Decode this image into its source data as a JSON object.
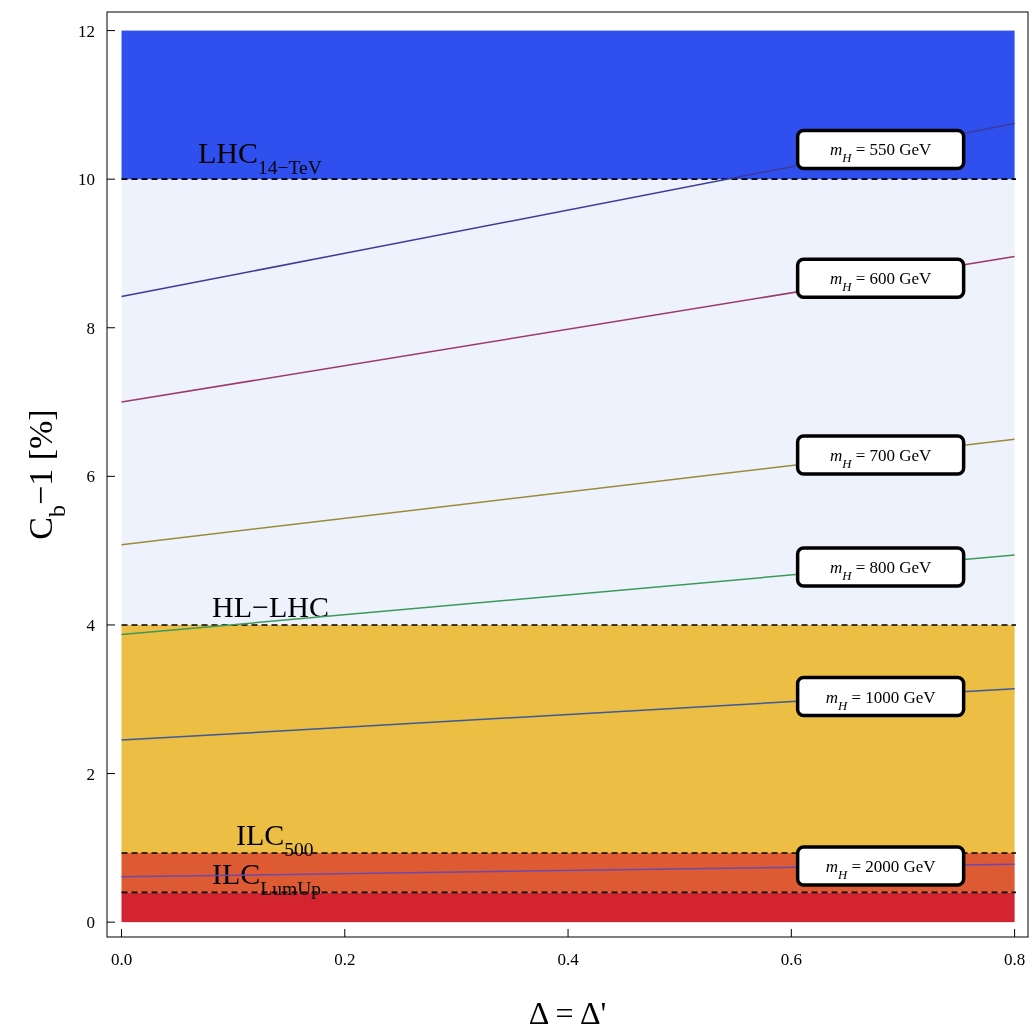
{
  "chart_data": {
    "type": "line",
    "xlabel": "Δ = Δ'",
    "ylabel": "C$_{b}$−1 [%]",
    "xlim": [
      -0.013,
      0.812
    ],
    "ylim": [
      -0.2,
      12.25
    ],
    "xticks": [
      {
        "value": 0,
        "label": "0.0"
      },
      {
        "value": 0.2,
        "label": "0.2"
      },
      {
        "value": 0.4,
        "label": "0.4"
      },
      {
        "value": 0.6,
        "label": "0.6"
      },
      {
        "value": 0.8,
        "label": "0.8"
      }
    ],
    "yticks": [
      0,
      2,
      4,
      6,
      8,
      10,
      12
    ],
    "x": [
      0,
      0.8
    ],
    "series": [
      {
        "name": "m$_{H}$ = 550 GeV",
        "color": "#3b3b98",
        "values": [
          8.42,
          10.75
        ]
      },
      {
        "name": "m$_{H}$ = 600 GeV",
        "color": "#9c3a6c",
        "values": [
          7.0,
          8.96
        ]
      },
      {
        "name": "m$_{H}$ = 700 GeV",
        "color": "#9a8a3a",
        "values": [
          5.08,
          6.5
        ]
      },
      {
        "name": "m$_{H}$ = 800 GeV",
        "color": "#3a9a5a",
        "values": [
          3.87,
          4.94
        ]
      },
      {
        "name": "m$_{H}$ = 1000 GeV",
        "color": "#3a5a9a",
        "values": [
          2.45,
          3.14
        ]
      },
      {
        "name": "m$_{H}$ = 2000 GeV",
        "color": "#6a4aaa",
        "values": [
          0.61,
          0.78
        ]
      }
    ],
    "bands": [
      {
        "axis": "y",
        "from": 0,
        "to": 0.4,
        "color": "#d42430"
      },
      {
        "axis": "y",
        "from": 0.4,
        "to": 0.93,
        "color": "#dd5a33"
      },
      {
        "axis": "y",
        "from": 0.93,
        "to": 4,
        "color": "#ecbe44"
      },
      {
        "axis": "y",
        "from": 4,
        "to": 10,
        "color": "#eef2fc"
      },
      {
        "axis": "y",
        "from": 10,
        "to": 12,
        "color": "#2f50ef"
      }
    ],
    "ref_lines": [
      {
        "axis": "y",
        "value": 10,
        "label": "LHC$_{14−TeV}$",
        "line_style": "dashed"
      },
      {
        "axis": "y",
        "value": 4,
        "label": "HL−LHC",
        "line_style": "dashed"
      },
      {
        "axis": "y",
        "value": 0.93,
        "label": "ILC$_{500}$",
        "line_style": "dashed"
      },
      {
        "axis": "y",
        "value": 0.4,
        "label": "ILC$_{LumUp}$",
        "line_style": "dashed"
      }
    ],
    "grid": false,
    "line_style": "solid"
  }
}
